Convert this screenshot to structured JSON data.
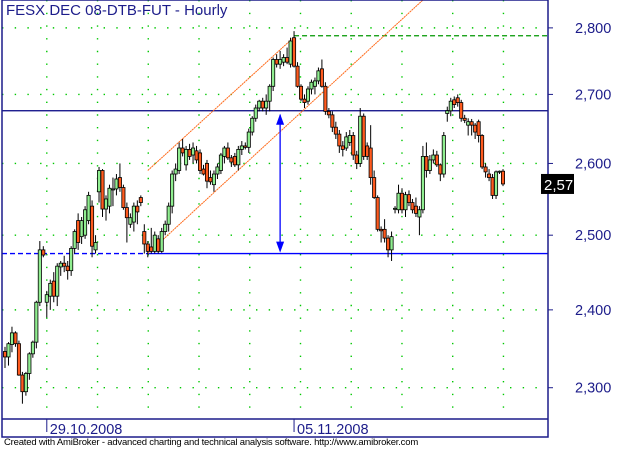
{
  "chart_data": {
    "type": "candlestick",
    "title": "FESX DEC 08-DTB-FUT - Hourly",
    "y_scale": "log",
    "ylim": [
      2261,
      2843
    ],
    "y_ticks": [
      {
        "value": 2300,
        "label": "2,300"
      },
      {
        "value": 2400,
        "label": "2,400"
      },
      {
        "value": 2500,
        "label": "2,500"
      },
      {
        "value": 2600,
        "label": "2,600"
      },
      {
        "value": 2700,
        "label": "2,700"
      },
      {
        "value": 2800,
        "label": "2,800"
      }
    ],
    "x_ticks": [
      {
        "bar": 12,
        "label": "29.10.2008"
      },
      {
        "bar": 83,
        "label": "05.11.2008"
      }
    ],
    "grid": true,
    "last_price": {
      "value": 2571,
      "label": "2,571"
    },
    "colors": {
      "up": "#90ee90",
      "down": "#ff5a1e",
      "axis": "#1c1c8a",
      "grid": "#00c800",
      "channel": "#ff6a1a",
      "support": "#0000ff",
      "resistance": "#000080",
      "target": "#009600"
    },
    "bars_ohlc": [
      [
        2346,
        2352,
        2325,
        2339
      ],
      [
        2339,
        2358,
        2328,
        2356
      ],
      [
        2355,
        2378,
        2345,
        2370
      ],
      [
        2370,
        2372,
        2352,
        2356
      ],
      [
        2356,
        2360,
        2315,
        2316
      ],
      [
        2316,
        2320,
        2280,
        2295
      ],
      [
        2295,
        2320,
        2290,
        2318
      ],
      [
        2318,
        2345,
        2310,
        2343
      ],
      [
        2343,
        2360,
        2338,
        2358
      ],
      [
        2358,
        2412,
        2350,
        2410
      ],
      [
        2410,
        2492,
        2405,
        2480
      ],
      [
        2480,
        2485,
        2470,
        2473
      ],
      [
        2410,
        2425,
        2390,
        2420
      ],
      [
        2418,
        2440,
        2400,
        2435
      ],
      [
        2438,
        2450,
        2410,
        2418
      ],
      [
        2418,
        2462,
        2405,
        2458
      ],
      [
        2457,
        2465,
        2445,
        2462
      ],
      [
        2462,
        2472,
        2450,
        2458
      ],
      [
        2458,
        2465,
        2440,
        2452
      ],
      [
        2452,
        2485,
        2445,
        2482
      ],
      [
        2482,
        2508,
        2475,
        2505
      ],
      [
        2520,
        2530,
        2480,
        2490
      ],
      [
        2498,
        2525,
        2488,
        2520
      ],
      [
        2500,
        2540,
        2495,
        2535
      ],
      [
        2520,
        2560,
        2515,
        2555
      ],
      [
        2540,
        2548,
        2470,
        2485
      ],
      [
        2480,
        2500,
        2475,
        2490
      ],
      [
        2560,
        2595,
        2545,
        2590
      ],
      [
        2590,
        2592,
        2525,
        2536
      ],
      [
        2536,
        2555,
        2520,
        2550
      ],
      [
        2540,
        2570,
        2530,
        2565
      ],
      [
        2563,
        2580,
        2540,
        2564
      ],
      [
        2564,
        2585,
        2555,
        2578
      ],
      [
        2580,
        2600,
        2560,
        2566
      ],
      [
        2566,
        2570,
        2535,
        2538
      ],
      [
        2538,
        2545,
        2490,
        2524
      ],
      [
        2515,
        2530,
        2510,
        2524
      ],
      [
        2518,
        2545,
        2505,
        2540
      ],
      [
        2540,
        2548,
        2515,
        2532
      ],
      [
        2552,
        2555,
        2540,
        2545
      ],
      [
        2505,
        2515,
        2475,
        2488
      ],
      [
        2488,
        2492,
        2470,
        2478
      ],
      [
        2484,
        2510,
        2475,
        2478
      ],
      [
        2478,
        2505,
        2475,
        2500
      ],
      [
        2495,
        2500,
        2475,
        2478
      ],
      [
        2478,
        2510,
        2476,
        2505
      ],
      [
        2505,
        2520,
        2500,
        2515
      ],
      [
        2515,
        2545,
        2505,
        2540
      ],
      [
        2540,
        2590,
        2530,
        2585
      ],
      [
        2585,
        2600,
        2575,
        2592
      ],
      [
        2590,
        2630,
        2585,
        2622
      ],
      [
        2622,
        2635,
        2610,
        2615
      ],
      [
        2598,
        2625,
        2590,
        2620
      ],
      [
        2620,
        2628,
        2605,
        2610
      ],
      [
        2612,
        2630,
        2600,
        2622
      ],
      [
        2618,
        2625,
        2600,
        2605
      ],
      [
        2615,
        2620,
        2585,
        2590
      ],
      [
        2592,
        2598,
        2583,
        2585
      ],
      [
        2600,
        2605,
        2565,
        2575
      ],
      [
        2580,
        2590,
        2570,
        2574
      ],
      [
        2570,
        2590,
        2560,
        2585
      ],
      [
        2585,
        2600,
        2578,
        2595
      ],
      [
        2590,
        2615,
        2585,
        2612
      ],
      [
        2610,
        2625,
        2600,
        2622
      ],
      [
        2622,
        2630,
        2605,
        2608
      ],
      [
        2608,
        2612,
        2595,
        2602
      ],
      [
        2610,
        2615,
        2595,
        2598
      ],
      [
        2598,
        2625,
        2590,
        2620
      ],
      [
        2620,
        2632,
        2612,
        2625
      ],
      [
        2625,
        2630,
        2620,
        2623
      ],
      [
        2623,
        2650,
        2615,
        2645
      ],
      [
        2645,
        2668,
        2640,
        2665
      ],
      [
        2665,
        2685,
        2660,
        2680
      ],
      [
        2680,
        2692,
        2675,
        2690
      ],
      [
        2690,
        2695,
        2675,
        2680
      ],
      [
        2680,
        2700,
        2670,
        2690
      ],
      [
        2690,
        2715,
        2675,
        2712
      ],
      [
        2712,
        2755,
        2705,
        2752
      ],
      [
        2752,
        2760,
        2740,
        2745
      ],
      [
        2745,
        2765,
        2738,
        2752
      ],
      [
        2748,
        2760,
        2742,
        2755
      ],
      [
        2755,
        2770,
        2745,
        2748
      ],
      [
        2745,
        2785,
        2740,
        2780
      ],
      [
        2785,
        2795,
        2740,
        2742
      ],
      [
        2742,
        2748,
        2710,
        2712
      ],
      [
        2712,
        2715,
        2690,
        2693
      ],
      [
        2693,
        2700,
        2680,
        2688
      ],
      [
        2690,
        2712,
        2685,
        2708
      ],
      [
        2708,
        2722,
        2700,
        2718
      ],
      [
        2712,
        2725,
        2700,
        2720
      ],
      [
        2720,
        2740,
        2715,
        2735
      ],
      [
        2738,
        2752,
        2710,
        2712
      ],
      [
        2712,
        2718,
        2670,
        2675
      ],
      [
        2675,
        2680,
        2665,
        2670
      ],
      [
        2670,
        2675,
        2645,
        2652
      ],
      [
        2652,
        2660,
        2635,
        2642
      ],
      [
        2642,
        2648,
        2615,
        2625
      ],
      [
        2625,
        2632,
        2610,
        2620
      ],
      [
        2622,
        2645,
        2618,
        2638
      ],
      [
        2630,
        2648,
        2625,
        2640
      ],
      [
        2640,
        2645,
        2605,
        2612
      ],
      [
        2612,
        2618,
        2592,
        2600
      ],
      [
        2600,
        2680,
        2595,
        2668
      ],
      [
        2668,
        2672,
        2605,
        2610
      ],
      [
        2625,
        2630,
        2605,
        2610
      ],
      [
        2622,
        2655,
        2570,
        2580
      ],
      [
        2580,
        2590,
        2550,
        2552
      ],
      [
        2552,
        2555,
        2505,
        2508
      ],
      [
        2508,
        2512,
        2490,
        2506
      ],
      [
        2508,
        2522,
        2490,
        2496
      ],
      [
        2496,
        2500,
        2470,
        2480
      ],
      [
        2480,
        2505,
        2465,
        2498
      ],
      [
        2536,
        2540,
        2530,
        2537
      ],
      [
        2535,
        2570,
        2530,
        2558
      ],
      [
        2558,
        2565,
        2530,
        2535
      ],
      [
        2535,
        2560,
        2525,
        2556
      ],
      [
        2556,
        2562,
        2540,
        2545
      ],
      [
        2545,
        2550,
        2530,
        2535
      ],
      [
        2540,
        2552,
        2525,
        2530
      ],
      [
        2525,
        2540,
        2500,
        2535
      ],
      [
        2535,
        2625,
        2530,
        2610
      ],
      [
        2610,
        2630,
        2580,
        2590
      ],
      [
        2590,
        2612,
        2585,
        2605
      ],
      [
        2605,
        2620,
        2600,
        2612
      ],
      [
        2612,
        2618,
        2595,
        2598
      ],
      [
        2598,
        2600,
        2575,
        2585
      ],
      [
        2585,
        2645,
        2580,
        2640
      ],
      [
        2672,
        2682,
        2660,
        2676
      ],
      [
        2676,
        2695,
        2668,
        2690
      ],
      [
        2692,
        2697,
        2680,
        2685
      ],
      [
        2695,
        2700,
        2682,
        2688
      ],
      [
        2688,
        2692,
        2660,
        2665
      ],
      [
        2665,
        2670,
        2658,
        2662
      ],
      [
        2655,
        2665,
        2640,
        2660
      ],
      [
        2660,
        2664,
        2640,
        2655
      ],
      [
        2655,
        2658,
        2635,
        2645
      ],
      [
        2660,
        2663,
        2630,
        2640
      ],
      [
        2640,
        2642,
        2592,
        2595
      ],
      [
        2595,
        2600,
        2580,
        2588
      ],
      [
        2585,
        2592,
        2575,
        2580
      ],
      [
        2580,
        2585,
        2550,
        2555
      ],
      [
        2555,
        2590,
        2550,
        2588
      ],
      [
        2588,
        2590,
        2585,
        2589
      ],
      [
        2589,
        2592,
        2568,
        2571
      ]
    ],
    "studies": {
      "resistance_line": {
        "price": 2676
      },
      "support_line": {
        "price": 2475,
        "dashed_until_bar": 41
      },
      "target_line": {
        "price": 2788,
        "from_bar": 83
      },
      "channel_upper": {
        "from": [
          41,
          2590
        ],
        "to": [
          83,
          2786
        ]
      },
      "channel_lower": {
        "from": [
          41,
          2475
        ],
        "to": [
          120,
          2843
        ]
      },
      "measure_arrow": {
        "bar": 79,
        "from": 2676,
        "to": 2475
      }
    }
  },
  "footer": "Created with AmiBroker - advanced charting and technical analysis software. http://www.amibroker.com"
}
